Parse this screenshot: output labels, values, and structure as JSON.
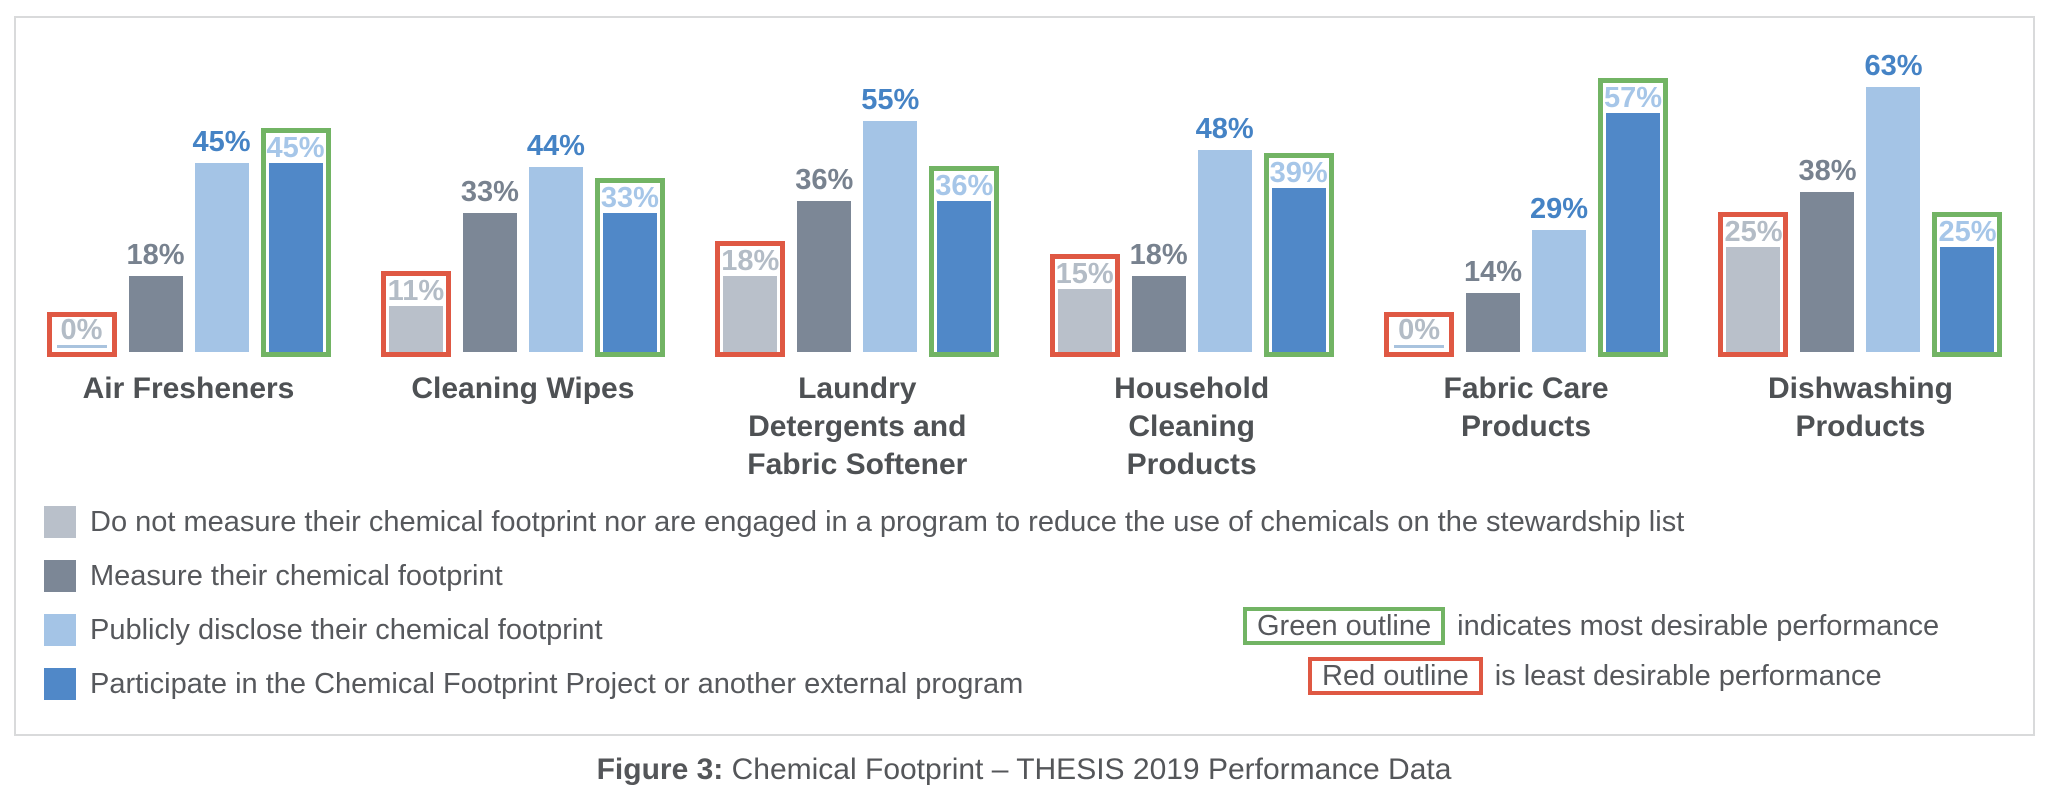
{
  "colors": {
    "bar_series": [
      "#b9c0ca",
      "#7c8796",
      "#a4c4e6",
      "#5088c8"
    ],
    "label_series": [
      "#b3bcc6",
      "#78828f",
      "#4583c5",
      "#a6c6e8"
    ],
    "red_outline": "#df5843",
    "green_outline": "#72b464",
    "zero_line": "#a9c3de",
    "category_text": "#4e5154",
    "legend_text": "#56585c",
    "caption_text": "#545659",
    "frame_border": "#d9dadb"
  },
  "chart_data": {
    "type": "bar",
    "title": "",
    "xlabel": "",
    "ylabel": "",
    "ylim": [
      0,
      70
    ],
    "grid": false,
    "axes_hidden": true,
    "value_suffix": "%",
    "legend_position": "bottom-left",
    "categories": [
      "Air Fresheners",
      "Cleaning Wipes",
      "Laundry\nDetergents and\nFabric Softener",
      "Household\nCleaning\nProducts",
      "Fabric Care\nProducts",
      "Dishwashing\nProducts"
    ],
    "series": [
      {
        "name": "Do not measure their chemical footprint nor are engaged in a program to reduce the use of chemicals on the stewardship list",
        "values": [
          0,
          11,
          18,
          15,
          0,
          25
        ]
      },
      {
        "name": "Measure their chemical footprint",
        "values": [
          18,
          33,
          36,
          18,
          14,
          38
        ]
      },
      {
        "name": "Publicly disclose their chemical footprint",
        "values": [
          45,
          44,
          55,
          48,
          29,
          63
        ]
      },
      {
        "name": "Participate in the Chemical Footprint Project or another external program",
        "values": [
          45,
          33,
          36,
          39,
          57,
          25
        ]
      }
    ],
    "outline": {
      "red_series_index": 0,
      "green_series_index": 3,
      "red_meaning": "least desirable performance",
      "green_meaning": "most desirable performance"
    }
  },
  "legend": {
    "items": [
      {
        "label": "Do not measure their chemical footprint nor are engaged in a program to reduce the use of chemicals on the stewardship list"
      },
      {
        "label": "Measure their chemical footprint"
      },
      {
        "label": "Publicly disclose their chemical footprint"
      },
      {
        "label": "Participate in the Chemical Footprint Project or another external program"
      }
    ]
  },
  "outline_legend": {
    "green_label": "Green outline",
    "green_text": "indicates most desirable performance",
    "red_label": "Red outline",
    "red_text": "is least desirable performance"
  },
  "caption": {
    "prefix": "Figure 3:",
    "text": " Chemical Footprint – THESIS 2019 Performance Data"
  }
}
